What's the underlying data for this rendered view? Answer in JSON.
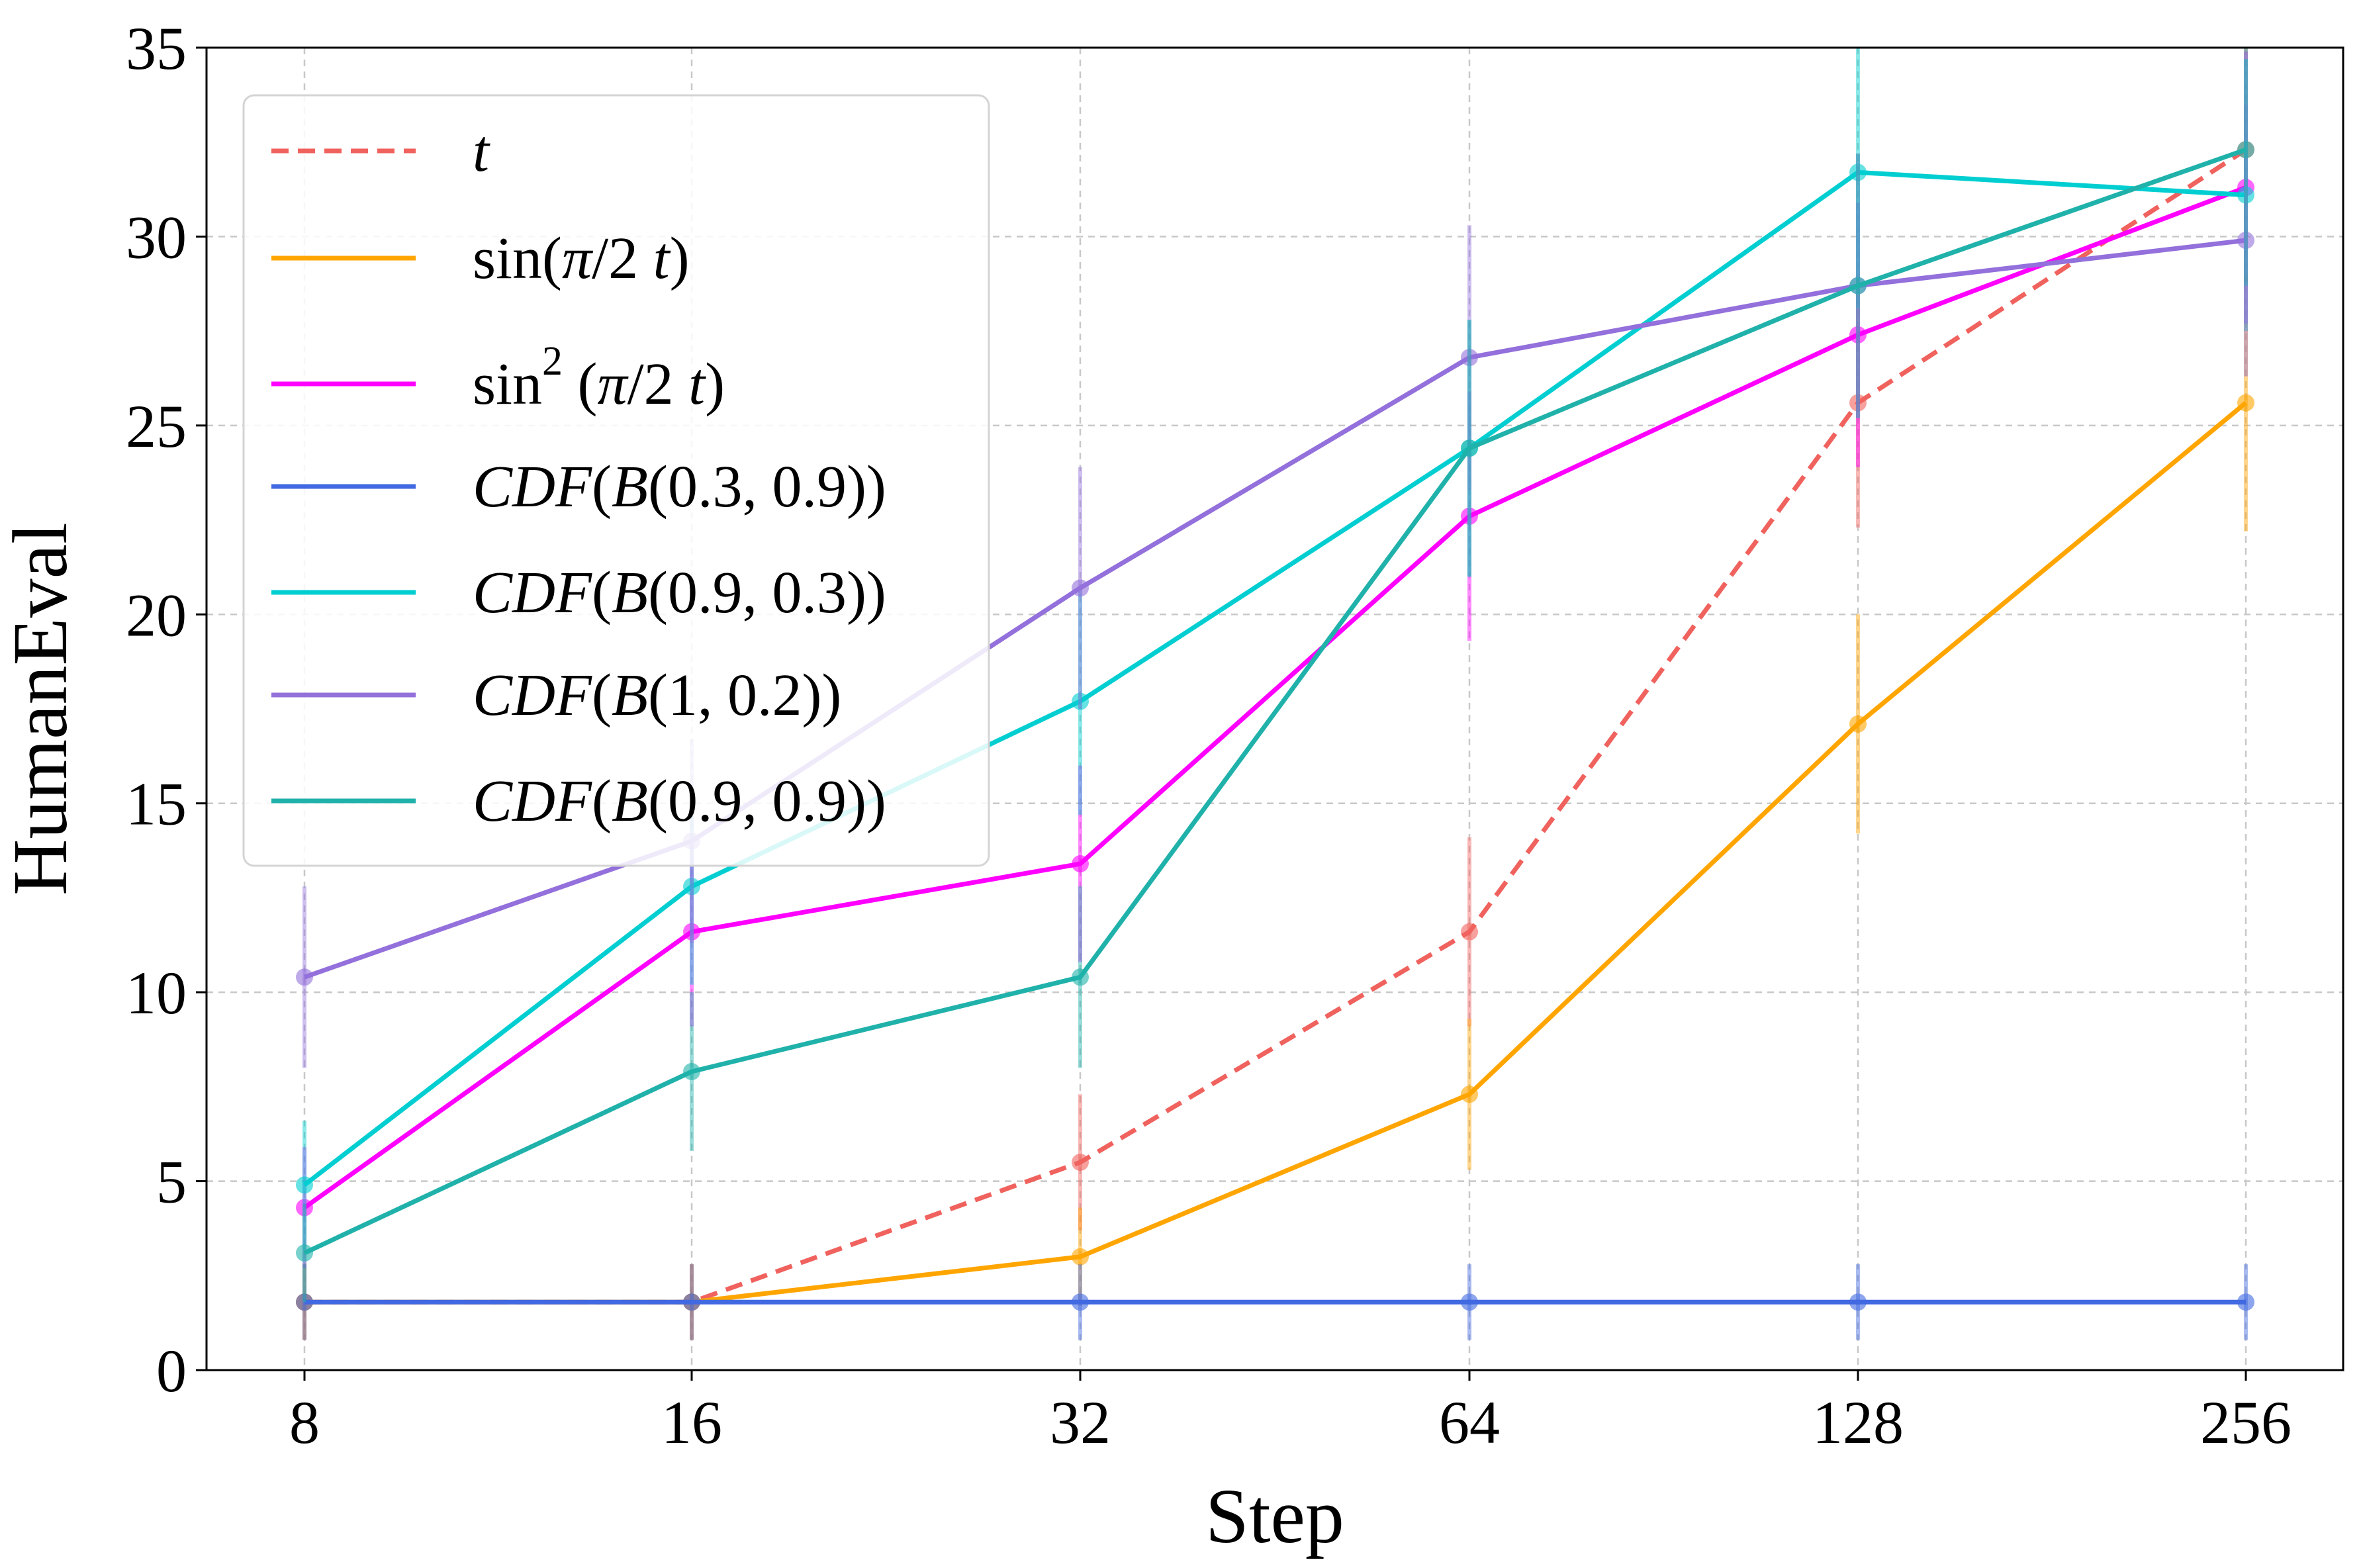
{
  "chart_data": {
    "type": "line",
    "xlabel": "Step",
    "ylabel": "HumanEval",
    "categories": [
      "8",
      "16",
      "32",
      "64",
      "128",
      "256"
    ],
    "ylim": [
      0,
      35
    ],
    "yticks": [
      "0",
      "5",
      "10",
      "15",
      "20",
      "25",
      "30",
      "35"
    ],
    "grid": true,
    "legend_position": "top-left",
    "series": [
      {
        "name": "t",
        "legend_parts": [
          {
            "text": "t",
            "italic": true
          }
        ],
        "color": "#f0625e",
        "dashed": true,
        "values": [
          1.8,
          1.8,
          5.5,
          11.6,
          25.6,
          32.3
        ],
        "err": [
          1.0,
          1.0,
          1.8,
          2.5,
          3.3,
          3.5
        ]
      },
      {
        "name": "sin(π/2 t)",
        "legend_parts": [
          {
            "text": "sin(",
            "italic": false
          },
          {
            "text": "π",
            "italic": true
          },
          {
            "text": "/2 ",
            "italic": false
          },
          {
            "text": "t",
            "italic": true
          },
          {
            "text": ")",
            "italic": false
          }
        ],
        "color": "#ffa500",
        "dashed": false,
        "values": [
          1.8,
          1.8,
          3.0,
          7.3,
          17.1,
          25.6
        ],
        "err": [
          1.0,
          1.0,
          1.3,
          2.0,
          2.9,
          3.4
        ]
      },
      {
        "name": "sin2 (π/2 t)",
        "legend_parts": [
          {
            "text": "sin",
            "italic": false
          },
          {
            "text": "2",
            "italic": false,
            "sup": true
          },
          {
            "text": " (",
            "italic": false
          },
          {
            "text": "π",
            "italic": true
          },
          {
            "text": "/2 ",
            "italic": false
          },
          {
            "text": "t",
            "italic": true
          },
          {
            "text": ")",
            "italic": false
          }
        ],
        "color": "#ff00ff",
        "dashed": false,
        "values": [
          4.3,
          11.6,
          13.4,
          22.6,
          27.4,
          31.3
        ],
        "err": [
          1.6,
          2.5,
          2.6,
          3.3,
          3.5,
          3.6
        ]
      },
      {
        "name": "CDF(B(0.3, 0.9))",
        "legend_parts": [
          {
            "text": "CDF",
            "italic": true
          },
          {
            "text": "(",
            "italic": false
          },
          {
            "text": "B",
            "italic": true
          },
          {
            "text": "(0.3, 0.9))",
            "italic": false
          }
        ],
        "color": "#4169e1",
        "dashed": false,
        "values": [
          1.8,
          1.8,
          1.8,
          1.8,
          1.8,
          1.8
        ],
        "err": [
          1.0,
          1.0,
          1.0,
          1.0,
          1.0,
          1.0
        ]
      },
      {
        "name": "CDF(B(0.9, 0.3))",
        "legend_parts": [
          {
            "text": "CDF",
            "italic": true
          },
          {
            "text": "(",
            "italic": false
          },
          {
            "text": "B",
            "italic": true
          },
          {
            "text": "(0.9, 0.3))",
            "italic": false
          }
        ],
        "color": "#00ced1",
        "dashed": false,
        "values": [
          4.9,
          12.8,
          17.7,
          24.4,
          31.7,
          31.1
        ],
        "err": [
          1.7,
          2.6,
          3.0,
          3.4,
          3.6,
          3.6
        ]
      },
      {
        "name": "CDF(B(1, 0.2))",
        "legend_parts": [
          {
            "text": "CDF",
            "italic": true
          },
          {
            "text": "(",
            "italic": false
          },
          {
            "text": "B",
            "italic": true
          },
          {
            "text": "(1, 0.2))",
            "italic": false
          }
        ],
        "color": "#9370db",
        "dashed": false,
        "values": [
          10.4,
          14.0,
          20.7,
          26.8,
          28.7,
          29.9
        ],
        "err": [
          2.4,
          2.7,
          3.2,
          3.5,
          3.5,
          3.6
        ]
      },
      {
        "name": "CDF(B(0.9, 0.9))",
        "legend_parts": [
          {
            "text": "CDF",
            "italic": true
          },
          {
            "text": "(",
            "italic": false
          },
          {
            "text": "B",
            "italic": true
          },
          {
            "text": "(0.9, 0.9))",
            "italic": false
          }
        ],
        "color": "#20b2aa",
        "dashed": false,
        "values": [
          3.1,
          7.9,
          10.4,
          24.4,
          28.7,
          32.3
        ],
        "err": [
          1.3,
          2.1,
          2.4,
          3.4,
          3.5,
          3.6
        ]
      }
    ]
  }
}
